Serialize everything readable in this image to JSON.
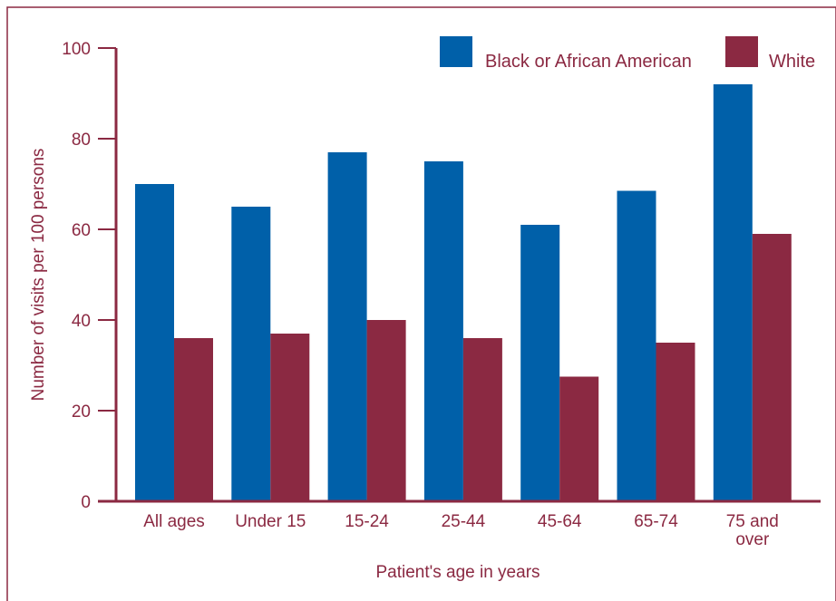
{
  "chart_data": {
    "type": "bar",
    "categories": [
      "All ages",
      "Under 15",
      "15-24",
      "25-44",
      "45-64",
      "65-74",
      "75 and over"
    ],
    "category_lines": [
      [
        "All ages"
      ],
      [
        "Under 15"
      ],
      [
        "15-24"
      ],
      [
        "25-44"
      ],
      [
        "45-64"
      ],
      [
        "65-74"
      ],
      [
        "75 and",
        "over"
      ]
    ],
    "series": [
      {
        "name": "Black or African American",
        "color": "#0060a9",
        "values": [
          70,
          65,
          77,
          75,
          61,
          68.5,
          92
        ]
      },
      {
        "name": "White",
        "color": "#8b2942",
        "values": [
          36,
          37,
          40,
          36,
          27.5,
          35,
          59
        ]
      }
    ],
    "xlabel": "Patient's age in years",
    "ylabel": "Number of visits per 100 persons",
    "ylim": [
      0,
      100
    ],
    "yticks": [
      0,
      20,
      40,
      60,
      80,
      100
    ],
    "grid": false,
    "legend_position": "top-right",
    "axis_color": "#8b2942"
  }
}
